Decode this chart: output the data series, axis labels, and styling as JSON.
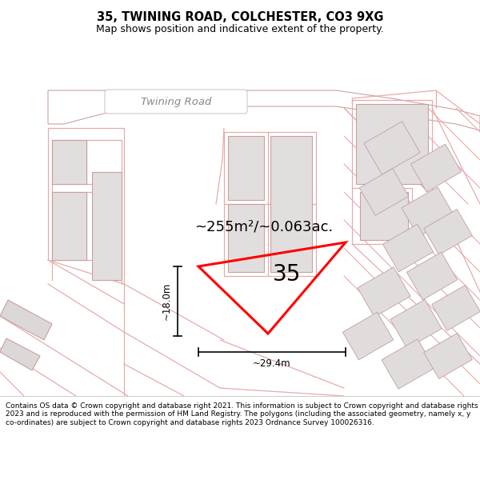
{
  "title": "35, TWINING ROAD, COLCHESTER, CO3 9XG",
  "subtitle": "Map shows position and indicative extent of the property.",
  "footer": "Contains OS data © Crown copyright and database right 2021. This information is subject to Crown copyright and database rights 2023 and is reproduced with the permission of HM Land Registry. The polygons (including the associated geometry, namely x, y co-ordinates) are subject to Crown copyright and database rights 2023 Ordnance Survey 100026316.",
  "area_label": "~255m²/~0.063ac.",
  "number_label": "35",
  "dim_h": "~18.0m",
  "dim_w": "~29.4m",
  "road_label": "Twining Road",
  "title_fontsize": 10.5,
  "subtitle_fontsize": 9,
  "footer_fontsize": 6.5,
  "map_bg": "#f7f3f3",
  "plot_edge_color": "#ff0000",
  "plot_lw": 2.2,
  "building_fill": "#e2dede",
  "building_edge": "#c8a0a0",
  "pink_line_color": "#e8aaaa",
  "road_fill": "#ffffff",
  "road_edge": "#d0a0a0",
  "dim_line_color": "#000000",
  "label_color": "#000000",
  "road_label_color": "#888888"
}
